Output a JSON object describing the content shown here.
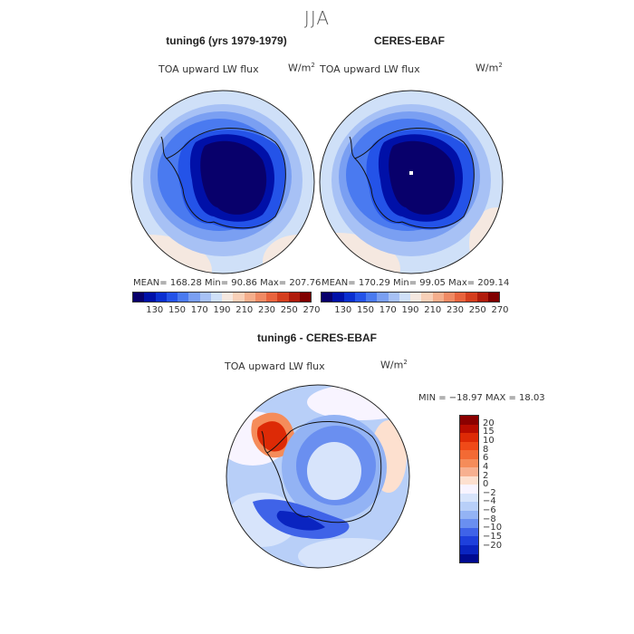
{
  "title": "JJA",
  "chart_data": [
    {
      "type": "heatmap",
      "projection": "south-polar-stereographic",
      "title": "tuning6 (yrs 1979-1979)",
      "variable": "TOA upward LW flux",
      "units": "W/m",
      "units_exp": "2",
      "stats": {
        "mean": 168.28,
        "min": 90.86,
        "max": 207.76
      },
      "stats_text": "MEAN= 168.28   Min=  90.86   Max= 207.76",
      "colorbar_ticks": [
        "130",
        "150",
        "170",
        "190",
        "210",
        "230",
        "250",
        "270"
      ],
      "levels": [
        120,
        130,
        140,
        150,
        160,
        170,
        180,
        190,
        200,
        210,
        220,
        230,
        240,
        250,
        260,
        270,
        280
      ]
    },
    {
      "type": "heatmap",
      "projection": "south-polar-stereographic",
      "title": "CERES-EBAF",
      "variable": "TOA upward LW flux",
      "units": "W/m",
      "units_exp": "2",
      "stats": {
        "mean": 170.29,
        "min": 99.05,
        "max": 209.14
      },
      "stats_text": "MEAN= 170.29   Min=  99.05   Max= 209.14",
      "colorbar_ticks": [
        "130",
        "150",
        "170",
        "190",
        "210",
        "230",
        "250",
        "270"
      ],
      "levels": [
        120,
        130,
        140,
        150,
        160,
        170,
        180,
        190,
        200,
        210,
        220,
        230,
        240,
        250,
        260,
        270,
        280
      ]
    },
    {
      "type": "heatmap",
      "projection": "south-polar-stereographic",
      "title": "tuning6 - CERES-EBAF",
      "variable": "TOA upward LW flux",
      "units": "W/m",
      "units_exp": "2",
      "stats": {
        "min": -18.97,
        "max": 18.03
      },
      "stats_text": "MIN = −18.97  MAX =  18.03",
      "colorbar_ticks": [
        "20",
        "15",
        "10",
        "8",
        "6",
        "4",
        "2",
        "0",
        "−2",
        "−4",
        "−6",
        "−8",
        "−10",
        "−15",
        "−20"
      ]
    }
  ],
  "colors": {
    "abs_scale": [
      "#08006b",
      "#0010a8",
      "#0a2fd0",
      "#2453e8",
      "#4a7af0",
      "#7a9ff2",
      "#a7c1f5",
      "#cfe0f8",
      "#f5e8e0",
      "#f8d0b8",
      "#f5ae8c",
      "#f08a64",
      "#e8643e",
      "#d43e1e",
      "#b01c0c",
      "#800000"
    ],
    "diff_scale": [
      "#8b0000",
      "#b80c00",
      "#dd2a06",
      "#f04a18",
      "#f36a34",
      "#f58c5a",
      "#f7b090",
      "#fde0cf",
      "#f8f4ff",
      "#d7e4fb",
      "#b8cff8",
      "#93b3f4",
      "#6a8ff0",
      "#3f63e8",
      "#1e40dc",
      "#0a24c0",
      "#000a90"
    ],
    "ocean_light": "#cfe0f8",
    "land_dark": "#08006b"
  }
}
